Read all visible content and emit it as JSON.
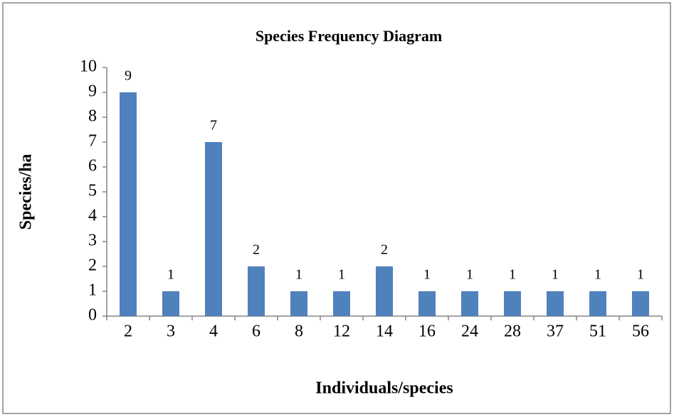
{
  "chart_data": {
    "type": "bar",
    "title": "Species Frequency Diagram",
    "x_label": "Individuals/species",
    "y_label": "Species/ha",
    "categories": [
      "2",
      "3",
      "4",
      "6",
      "8",
      "12",
      "14",
      "16",
      "24",
      "28",
      "37",
      "51",
      "56"
    ],
    "values": [
      9,
      1,
      7,
      2,
      1,
      1,
      2,
      1,
      1,
      1,
      1,
      1,
      1
    ],
    "color": "#4f81bd",
    "ylim": [
      0,
      10
    ],
    "yticks": [
      0,
      1,
      2,
      3,
      4,
      5,
      6,
      7,
      8,
      9,
      10
    ],
    "grid": false,
    "data_labels": true
  }
}
